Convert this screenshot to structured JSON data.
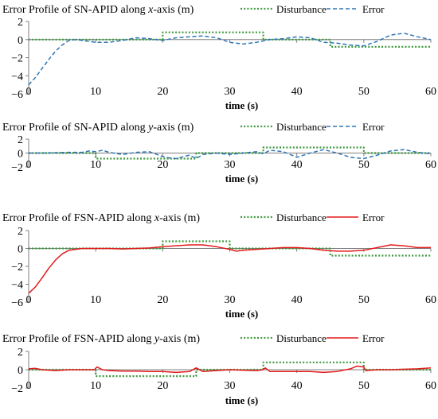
{
  "chart_data": [
    {
      "type": "line",
      "title_prefix": "Error Profile of SN-APID along ",
      "title_axis": "x",
      "title_suffix": "-axis (m)",
      "xlabel": "time (s)",
      "xlim": [
        0,
        60
      ],
      "xticks": [
        0,
        10,
        20,
        30,
        40,
        50,
        60
      ],
      "ylim": [
        -6,
        2
      ],
      "yticks": [
        2,
        0,
        -2,
        -4,
        -6
      ],
      "grid": false,
      "legend_position": "top-right",
      "series": [
        {
          "name": "Disturbance",
          "style": "dotted",
          "color": "#3c9a3c",
          "x": [
            0,
            20,
            20,
            35,
            35,
            45,
            45,
            60
          ],
          "y": [
            0,
            0,
            0.8,
            0.8,
            0,
            0,
            -0.8,
            -0.8
          ]
        },
        {
          "name": "Error",
          "style": "dashed",
          "color": "#2e75b6",
          "x": [
            0,
            1,
            2,
            3,
            4,
            5,
            6,
            7,
            8,
            9,
            10,
            12,
            14,
            16,
            18,
            20,
            22,
            24,
            26,
            28,
            30,
            32,
            34,
            36,
            38,
            40,
            42,
            44,
            46,
            48,
            50,
            52,
            54,
            56,
            58,
            60
          ],
          "y": [
            -5.0,
            -4.2,
            -3.2,
            -2.2,
            -1.3,
            -0.6,
            -0.1,
            0.0,
            -0.1,
            -0.2,
            -0.3,
            -0.3,
            -0.1,
            0.2,
            0.1,
            -0.1,
            0.2,
            0.3,
            0.4,
            0.2,
            -0.3,
            -0.5,
            -0.3,
            0.0,
            0.1,
            0.3,
            0.2,
            -0.3,
            -0.4,
            -0.6,
            -0.7,
            -0.2,
            0.5,
            0.7,
            0.3,
            0.0
          ]
        }
      ]
    },
    {
      "type": "line",
      "title_prefix": "Error Profile of SN-APID along ",
      "title_axis": "y",
      "title_suffix": "-axis (m)",
      "xlabel": "time (s)",
      "xlim": [
        0,
        60
      ],
      "xticks": [
        0,
        10,
        20,
        30,
        40,
        50,
        60
      ],
      "ylim": [
        -2,
        2
      ],
      "yticks": [
        2,
        0,
        -2
      ],
      "grid": false,
      "legend_position": "top-right",
      "series": [
        {
          "name": "Disturbance",
          "style": "dotted",
          "color": "#3c9a3c",
          "x": [
            0,
            10,
            10,
            25,
            25,
            35,
            35,
            50,
            50,
            60
          ],
          "y": [
            0,
            0,
            -0.8,
            -0.8,
            0,
            0,
            0.8,
            0.8,
            0,
            0
          ]
        },
        {
          "name": "Error",
          "style": "dashed",
          "color": "#2e75b6",
          "x": [
            0,
            2,
            4,
            6,
            8,
            9,
            10,
            11,
            12,
            14,
            16,
            18,
            20,
            21,
            22,
            24,
            25,
            26,
            28,
            30,
            32,
            34,
            35,
            36,
            38,
            40,
            42,
            44,
            46,
            48,
            50,
            52,
            54,
            56,
            58,
            60
          ],
          "y": [
            0.0,
            0.0,
            0.05,
            0.1,
            0.1,
            0.3,
            0.2,
            0.4,
            0.1,
            -0.2,
            0.1,
            0.2,
            -0.5,
            -0.7,
            -0.8,
            -0.3,
            -0.8,
            -0.2,
            0.0,
            -0.2,
            0.0,
            0.2,
            -0.1,
            0.4,
            0.2,
            -0.6,
            0.0,
            0.5,
            0.0,
            -0.6,
            -0.8,
            -0.3,
            0.3,
            0.5,
            0.1,
            -0.1
          ]
        }
      ]
    },
    {
      "type": "line",
      "title_prefix": "Error Profile of FSN-APID along ",
      "title_axis": "x",
      "title_suffix": "-axis (m)",
      "xlabel": "time (s)",
      "xlim": [
        0,
        60
      ],
      "xticks": [
        0,
        10,
        20,
        30,
        40,
        50,
        60
      ],
      "ylim": [
        -6,
        2
      ],
      "yticks": [
        2,
        0,
        -2,
        -4,
        -6
      ],
      "grid": false,
      "legend_position": "top-right",
      "series": [
        {
          "name": "Disturbance",
          "style": "dotted",
          "color": "#3c9a3c",
          "x": [
            0,
            20,
            20,
            30,
            30,
            45,
            45,
            60
          ],
          "y": [
            0,
            0,
            0.8,
            0.8,
            0,
            0,
            -0.8,
            -0.8
          ]
        },
        {
          "name": "Error",
          "style": "solid",
          "color": "#e31a1c",
          "x": [
            0,
            1,
            2,
            3,
            4,
            5,
            6,
            7,
            8,
            9,
            10,
            12,
            14,
            16,
            18,
            20,
            22,
            24,
            26,
            28,
            30,
            31,
            32,
            34,
            36,
            38,
            40,
            42,
            44,
            46,
            48,
            50,
            52,
            54,
            56,
            58,
            60
          ],
          "y": [
            -5.0,
            -4.3,
            -3.3,
            -2.2,
            -1.3,
            -0.6,
            -0.2,
            -0.1,
            0.0,
            0.0,
            0.0,
            0.0,
            -0.05,
            0.0,
            0.05,
            0.2,
            0.3,
            0.4,
            0.4,
            0.2,
            -0.1,
            -0.3,
            -0.2,
            -0.1,
            0.0,
            0.1,
            0.1,
            0.0,
            -0.2,
            -0.3,
            -0.3,
            -0.2,
            0.1,
            0.4,
            0.3,
            0.1,
            0.1
          ]
        }
      ]
    },
    {
      "type": "line",
      "title_prefix": "Error Profile of FSN-APID along ",
      "title_axis": "y",
      "title_suffix": "-axis (m)",
      "xlabel": "time (s)",
      "xlim": [
        0,
        60
      ],
      "xticks": [
        0,
        10,
        20,
        30,
        40,
        50,
        60
      ],
      "ylim": [
        -2,
        2
      ],
      "yticks": [
        2,
        0,
        -2
      ],
      "grid": false,
      "legend_position": "top-right",
      "series": [
        {
          "name": "Disturbance",
          "style": "dotted",
          "color": "#3c9a3c",
          "x": [
            0,
            10,
            10,
            25,
            25,
            35,
            35,
            50,
            50,
            60
          ],
          "y": [
            0,
            0,
            -0.7,
            -0.7,
            0,
            0,
            0.8,
            0.8,
            0,
            0
          ]
        },
        {
          "name": "Error",
          "style": "solid",
          "color": "#e31a1c",
          "x": [
            0,
            1,
            2,
            4,
            6,
            8,
            9.8,
            10.2,
            11,
            12,
            14,
            16,
            18,
            20,
            22,
            24,
            25,
            26,
            28,
            30,
            32,
            34,
            35,
            35.3,
            36,
            38,
            40,
            42,
            44,
            46,
            48,
            49,
            50,
            50.3,
            52,
            54,
            56,
            58,
            60
          ],
          "y": [
            0.1,
            0.15,
            0.0,
            -0.1,
            0.0,
            0.0,
            0.0,
            0.3,
            0.0,
            -0.1,
            -0.15,
            -0.15,
            -0.2,
            -0.2,
            -0.3,
            -0.2,
            0.2,
            -0.2,
            -0.1,
            0.0,
            -0.05,
            -0.1,
            0.0,
            0.2,
            -0.2,
            -0.2,
            -0.2,
            -0.2,
            -0.3,
            -0.2,
            0.1,
            0.4,
            0.3,
            -0.1,
            0.0,
            0.0,
            0.05,
            0.1,
            0.2
          ]
        }
      ]
    }
  ]
}
